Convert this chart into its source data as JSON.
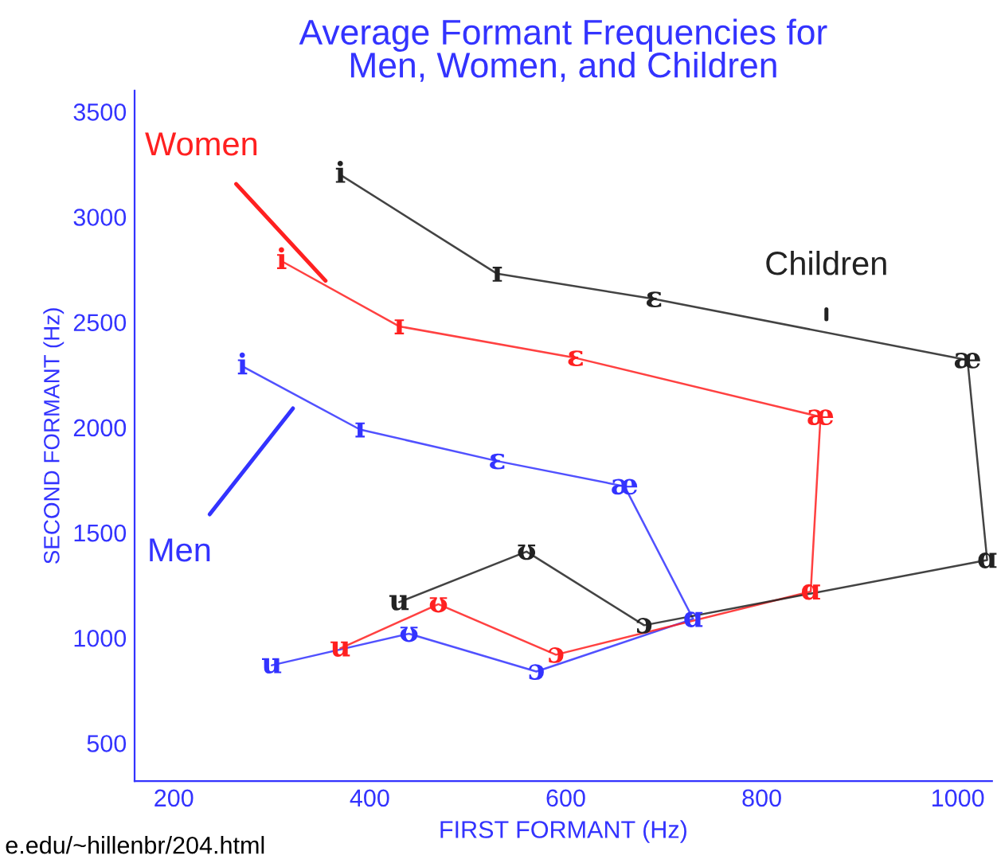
{
  "chart_data": {
    "type": "line",
    "title": "Average Formant Frequencies for\nMen, Women, and Children",
    "xlabel": "FIRST FORMANT (Hz)",
    "ylabel": "SECOND FORMANT (Hz)",
    "xlim": [
      160,
      1035
    ],
    "ylim": [
      320,
      3600
    ],
    "xticks": [
      200,
      400,
      600,
      800,
      1000
    ],
    "yticks": [
      500,
      1000,
      1500,
      2000,
      2500,
      3000,
      3500
    ],
    "grid": false,
    "legend": false,
    "marker": "none",
    "line_style": "solid",
    "series": [
      {
        "name": "Men",
        "color": "#3333ff",
        "x": [
          270,
          390,
          530,
          660,
          730,
          570,
          440,
          300
        ],
        "values": [
          2290,
          1990,
          1840,
          1720,
          1090,
          840,
          1020,
          870
        ],
        "value_labels": [
          "i",
          "ɪ",
          "ɛ",
          "æ",
          "ɑ",
          "ɔ",
          "ʊ",
          "u"
        ]
      },
      {
        "name": "Women",
        "color": "#ff2020",
        "x": [
          310,
          430,
          610,
          860,
          850,
          590,
          470,
          370
        ],
        "values": [
          2790,
          2480,
          2330,
          2050,
          1220,
          920,
          1160,
          950
        ],
        "value_labels": [
          "i",
          "ɪ",
          "ɛ",
          "æ",
          "ɑ",
          "ɔ",
          "ʊ",
          "u"
        ]
      },
      {
        "name": "Children",
        "color": "#222222",
        "x": [
          370,
          530,
          690,
          1010,
          1030,
          680,
          560,
          430
        ],
        "values": [
          3200,
          2730,
          2610,
          2320,
          1370,
          1060,
          1410,
          1170
        ],
        "value_labels": [
          "i",
          "ɪ",
          "ɛ",
          "æ",
          "ɑ",
          "ɔ",
          "ʊ",
          "u"
        ]
      }
    ],
    "annotations": [
      "e.edu/~hillenbr/204.html"
    ]
  }
}
